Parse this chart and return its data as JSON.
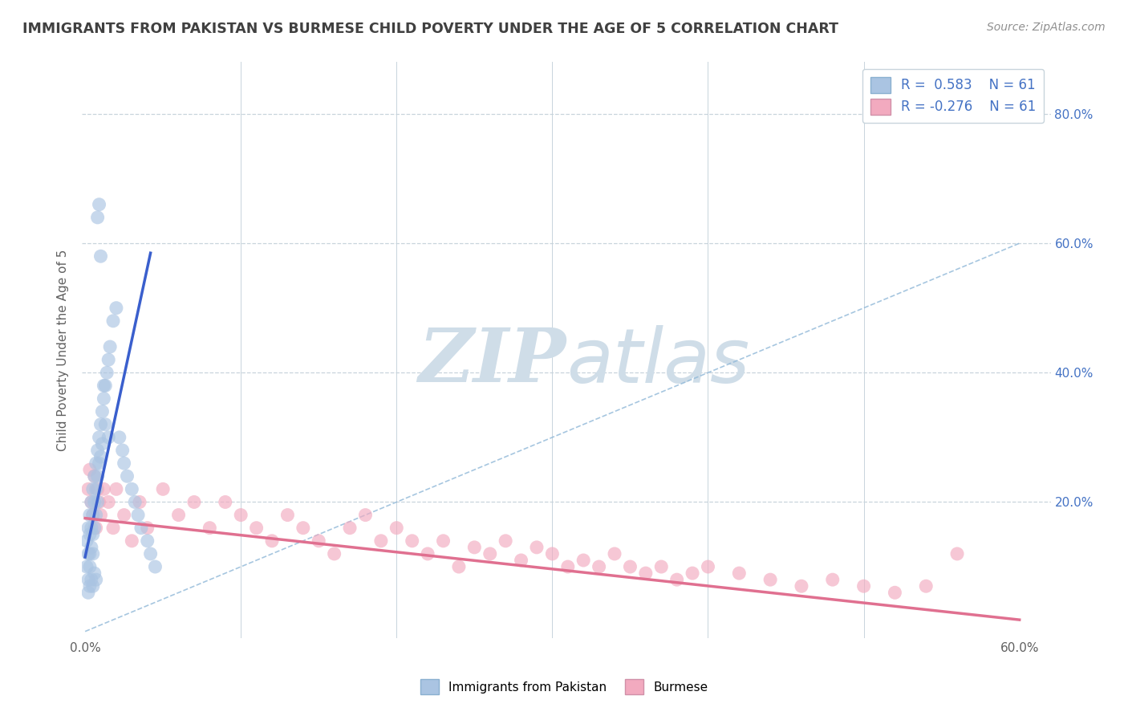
{
  "title": "IMMIGRANTS FROM PAKISTAN VS BURMESE CHILD POVERTY UNDER THE AGE OF 5 CORRELATION CHART",
  "source_text": "Source: ZipAtlas.com",
  "ylabel": "Child Poverty Under the Age of 5",
  "xlim": [
    -0.002,
    0.62
  ],
  "ylim": [
    -0.01,
    0.88
  ],
  "legend_labels": [
    "Immigrants from Pakistan",
    "Burmese"
  ],
  "r_blue": 0.583,
  "n_blue": 61,
  "r_pink": -0.276,
  "n_pink": 61,
  "blue_color": "#aac4e2",
  "pink_color": "#f2aabf",
  "blue_line_color": "#3a5fcd",
  "pink_line_color": "#e07090",
  "title_color": "#404040",
  "source_color": "#909090",
  "watermark_color": "#cfdde8",
  "background_color": "#ffffff",
  "grid_color": "#c8d4dc",
  "blue_scatter_x": [
    0.001,
    0.001,
    0.002,
    0.002,
    0.002,
    0.003,
    0.003,
    0.003,
    0.003,
    0.004,
    0.004,
    0.004,
    0.005,
    0.005,
    0.005,
    0.005,
    0.006,
    0.006,
    0.006,
    0.007,
    0.007,
    0.007,
    0.008,
    0.008,
    0.008,
    0.009,
    0.009,
    0.01,
    0.01,
    0.011,
    0.011,
    0.012,
    0.013,
    0.013,
    0.014,
    0.015,
    0.016,
    0.018,
    0.02,
    0.022,
    0.024,
    0.025,
    0.027,
    0.03,
    0.032,
    0.034,
    0.036,
    0.04,
    0.042,
    0.045,
    0.002,
    0.003,
    0.004,
    0.005,
    0.006,
    0.007,
    0.008,
    0.009,
    0.01,
    0.012,
    0.015
  ],
  "blue_scatter_y": [
    0.14,
    0.1,
    0.16,
    0.12,
    0.08,
    0.18,
    0.15,
    0.12,
    0.1,
    0.2,
    0.16,
    0.13,
    0.22,
    0.18,
    0.15,
    0.12,
    0.24,
    0.2,
    0.16,
    0.26,
    0.22,
    0.18,
    0.28,
    0.24,
    0.2,
    0.3,
    0.26,
    0.32,
    0.27,
    0.34,
    0.29,
    0.36,
    0.38,
    0.32,
    0.4,
    0.42,
    0.44,
    0.48,
    0.5,
    0.3,
    0.28,
    0.26,
    0.24,
    0.22,
    0.2,
    0.18,
    0.16,
    0.14,
    0.12,
    0.1,
    0.06,
    0.07,
    0.08,
    0.07,
    0.09,
    0.08,
    0.64,
    0.66,
    0.58,
    0.38,
    0.3
  ],
  "pink_scatter_x": [
    0.002,
    0.003,
    0.004,
    0.005,
    0.006,
    0.007,
    0.008,
    0.009,
    0.01,
    0.012,
    0.015,
    0.018,
    0.02,
    0.025,
    0.03,
    0.035,
    0.04,
    0.05,
    0.06,
    0.07,
    0.08,
    0.09,
    0.1,
    0.11,
    0.12,
    0.13,
    0.14,
    0.15,
    0.16,
    0.17,
    0.18,
    0.19,
    0.2,
    0.21,
    0.22,
    0.23,
    0.24,
    0.25,
    0.26,
    0.27,
    0.28,
    0.29,
    0.3,
    0.31,
    0.32,
    0.33,
    0.34,
    0.35,
    0.36,
    0.37,
    0.38,
    0.39,
    0.4,
    0.42,
    0.44,
    0.46,
    0.48,
    0.5,
    0.52,
    0.54,
    0.56
  ],
  "pink_scatter_y": [
    0.22,
    0.25,
    0.2,
    0.18,
    0.24,
    0.16,
    0.22,
    0.2,
    0.18,
    0.22,
    0.2,
    0.16,
    0.22,
    0.18,
    0.14,
    0.2,
    0.16,
    0.22,
    0.18,
    0.2,
    0.16,
    0.2,
    0.18,
    0.16,
    0.14,
    0.18,
    0.16,
    0.14,
    0.12,
    0.16,
    0.18,
    0.14,
    0.16,
    0.14,
    0.12,
    0.14,
    0.1,
    0.13,
    0.12,
    0.14,
    0.11,
    0.13,
    0.12,
    0.1,
    0.11,
    0.1,
    0.12,
    0.1,
    0.09,
    0.1,
    0.08,
    0.09,
    0.1,
    0.09,
    0.08,
    0.07,
    0.08,
    0.07,
    0.06,
    0.07,
    0.12
  ],
  "blue_line_x": [
    0.0,
    0.042
  ],
  "blue_line_y": [
    0.115,
    0.585
  ],
  "pink_line_x": [
    0.0,
    0.6
  ],
  "pink_line_y": [
    0.175,
    0.018
  ],
  "diag_line_x": [
    0.0,
    0.6
  ],
  "diag_line_y": [
    0.0,
    0.6
  ]
}
